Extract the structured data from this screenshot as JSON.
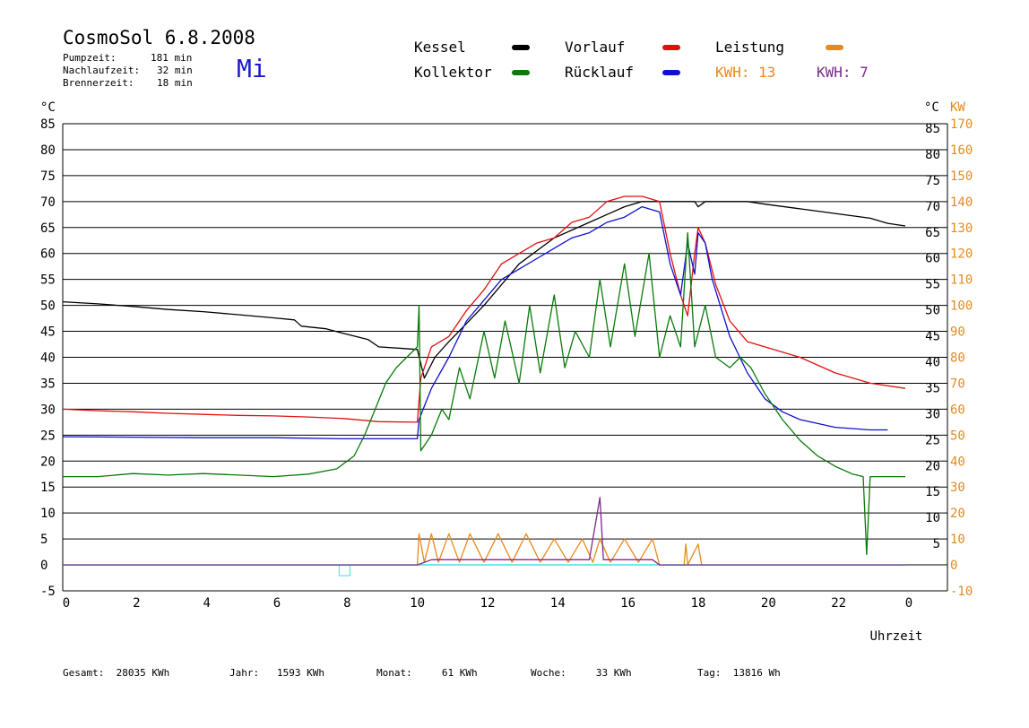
{
  "header": {
    "title": "CosmoSol 6.8.2008",
    "day": "Mi",
    "stats": [
      {
        "label": "Pumpzeit:",
        "value": "181 min"
      },
      {
        "label": "Nachlaufzeit:",
        "value": "32 min"
      },
      {
        "label": "Brennerzeit:",
        "value": "18 min"
      }
    ]
  },
  "legend": {
    "kessel": "Kessel",
    "kollektor": "Kollektor",
    "vorlauf": "Vorlauf",
    "ruecklauf": "Rücklauf",
    "leistung": "Leistung",
    "kwh1": "KWH: 13",
    "kwh2": "KWH: 7"
  },
  "colors": {
    "kessel": "#000000",
    "kollektor": "#0a7a0a",
    "vorlauf": "#e01010",
    "ruecklauf": "#1010d0",
    "leistung": "#e8891c",
    "kwh2": "#7b2a8c",
    "zero_line": "#40e0e0"
  },
  "footer": {
    "gesamt": "Gesamt:  28035 KWh",
    "jahr": "Jahr:   1593 KWh",
    "monat": "Monat:     61 KWh",
    "woche": "Woche:     33 KWh",
    "tag": "Tag:  13816 Wh"
  },
  "chart_data": {
    "type": "line",
    "left_unit": "°C",
    "right_unit_c": "°C",
    "right_unit_kw": "KW",
    "xlabel": "Uhrzeit",
    "x_ticks": [
      "0",
      "2",
      "4",
      "6",
      "8",
      "10",
      "12",
      "14",
      "16",
      "18",
      "20",
      "22",
      "0"
    ],
    "y_left_ticks": [
      85,
      80,
      75,
      70,
      65,
      60,
      55,
      50,
      45,
      40,
      35,
      30,
      25,
      20,
      15,
      10,
      5,
      0,
      -5
    ],
    "y_right_c_ticks": [
      85,
      80,
      75,
      70,
      65,
      60,
      55,
      50,
      45,
      40,
      35,
      30,
      25,
      20,
      15,
      10,
      5
    ],
    "y_right_kw_ticks": [
      170,
      160,
      150,
      140,
      130,
      120,
      110,
      100,
      90,
      80,
      70,
      60,
      50,
      40,
      30,
      20,
      10,
      0,
      -10
    ],
    "xlim": [
      0,
      24
    ],
    "ylim": [
      -5,
      85
    ],
    "grid": true,
    "series": [
      {
        "name": "Kessel",
        "key": "kessel",
        "points": [
          [
            0,
            50.7
          ],
          [
            1,
            50.3
          ],
          [
            2,
            49.8
          ],
          [
            3,
            49.2
          ],
          [
            4,
            48.8
          ],
          [
            5,
            48.2
          ],
          [
            6,
            47.6
          ],
          [
            6.6,
            47.2
          ],
          [
            6.8,
            46
          ],
          [
            7.5,
            45.5
          ],
          [
            8,
            44.6
          ],
          [
            8.7,
            43.4
          ],
          [
            9,
            42
          ],
          [
            9.7,
            41.7
          ],
          [
            10.1,
            41.5
          ],
          [
            10.3,
            36
          ],
          [
            10.6,
            40
          ],
          [
            11,
            43
          ],
          [
            12,
            50
          ],
          [
            13,
            58
          ],
          [
            14,
            63
          ],
          [
            15,
            66
          ],
          [
            15.5,
            67.5
          ],
          [
            16,
            69
          ],
          [
            16.5,
            70
          ],
          [
            17,
            70
          ],
          [
            17.5,
            70
          ],
          [
            18,
            70
          ],
          [
            18.1,
            69
          ],
          [
            18.3,
            70
          ],
          [
            19,
            70
          ],
          [
            19.5,
            70
          ],
          [
            20,
            69.5
          ],
          [
            21,
            68.6
          ],
          [
            22,
            67.7
          ],
          [
            23,
            66.8
          ],
          [
            23.5,
            65.8
          ],
          [
            24,
            65.3
          ]
        ]
      },
      {
        "name": "Vorlauf",
        "key": "vorlauf",
        "points": [
          [
            0,
            30
          ],
          [
            1,
            29.7
          ],
          [
            2,
            29.5
          ],
          [
            3,
            29.2
          ],
          [
            4,
            29
          ],
          [
            5,
            28.8
          ],
          [
            6,
            28.7
          ],
          [
            7,
            28.5
          ],
          [
            8,
            28.2
          ],
          [
            9,
            27.6
          ],
          [
            10.1,
            27.5
          ],
          [
            10.2,
            36
          ],
          [
            10.5,
            42
          ],
          [
            11,
            44
          ],
          [
            11.5,
            49
          ],
          [
            12,
            53
          ],
          [
            12.5,
            58
          ],
          [
            13,
            60
          ],
          [
            13.5,
            62
          ],
          [
            14,
            63
          ],
          [
            14.5,
            66
          ],
          [
            15,
            67
          ],
          [
            15.5,
            70
          ],
          [
            16,
            71
          ],
          [
            16.5,
            71
          ],
          [
            17,
            70
          ],
          [
            17.3,
            60
          ],
          [
            17.6,
            52
          ],
          [
            17.8,
            48
          ],
          [
            18,
            60
          ],
          [
            18.1,
            65
          ],
          [
            18.3,
            62
          ],
          [
            18.6,
            54
          ],
          [
            19,
            47
          ],
          [
            19.5,
            43
          ],
          [
            20,
            42
          ],
          [
            21,
            40
          ],
          [
            22,
            37
          ],
          [
            23,
            35
          ],
          [
            24,
            34
          ]
        ]
      },
      {
        "name": "Rücklauf",
        "key": "ruecklauf",
        "points": [
          [
            0,
            24.7
          ],
          [
            2,
            24.6
          ],
          [
            4,
            24.5
          ],
          [
            6,
            24.5
          ],
          [
            8,
            24.3
          ],
          [
            10.1,
            24.3
          ],
          [
            10.15,
            28
          ],
          [
            10.5,
            34
          ],
          [
            11,
            40
          ],
          [
            11.5,
            47
          ],
          [
            12,
            51
          ],
          [
            12.5,
            55
          ],
          [
            13,
            57
          ],
          [
            13.5,
            59
          ],
          [
            14,
            61
          ],
          [
            14.5,
            63
          ],
          [
            15,
            64
          ],
          [
            15.5,
            66
          ],
          [
            16,
            67
          ],
          [
            16.5,
            69
          ],
          [
            17,
            68
          ],
          [
            17.3,
            58
          ],
          [
            17.6,
            52
          ],
          [
            17.8,
            62
          ],
          [
            18,
            56
          ],
          [
            18.1,
            64
          ],
          [
            18.3,
            62
          ],
          [
            18.5,
            55
          ],
          [
            19,
            44
          ],
          [
            19.5,
            37
          ],
          [
            20,
            32
          ],
          [
            20.5,
            29.5
          ],
          [
            21,
            28
          ],
          [
            22,
            26.5
          ],
          [
            23,
            26
          ],
          [
            23.5,
            26
          ]
        ]
      },
      {
        "name": "Kollektor",
        "key": "kollektor",
        "points": [
          [
            0,
            17
          ],
          [
            1,
            17
          ],
          [
            2,
            17.6
          ],
          [
            3,
            17.3
          ],
          [
            4,
            17.6
          ],
          [
            5,
            17.3
          ],
          [
            6,
            17
          ],
          [
            7,
            17.5
          ],
          [
            7.8,
            18.5
          ],
          [
            8.3,
            21
          ],
          [
            8.6,
            25
          ],
          [
            8.9,
            30
          ],
          [
            9.2,
            35
          ],
          [
            9.5,
            38
          ],
          [
            9.8,
            40
          ],
          [
            10.1,
            42
          ],
          [
            10.15,
            50
          ],
          [
            10.2,
            22
          ],
          [
            10.5,
            25
          ],
          [
            10.8,
            30
          ],
          [
            11,
            28
          ],
          [
            11.3,
            38
          ],
          [
            11.6,
            32
          ],
          [
            12,
            45
          ],
          [
            12.3,
            36
          ],
          [
            12.6,
            47
          ],
          [
            13,
            35
          ],
          [
            13.3,
            50
          ],
          [
            13.6,
            37
          ],
          [
            14,
            52
          ],
          [
            14.3,
            38
          ],
          [
            14.6,
            45
          ],
          [
            15,
            40
          ],
          [
            15.3,
            55
          ],
          [
            15.6,
            42
          ],
          [
            16,
            58
          ],
          [
            16.3,
            44
          ],
          [
            16.7,
            60
          ],
          [
            17,
            40
          ],
          [
            17.3,
            48
          ],
          [
            17.6,
            42
          ],
          [
            17.8,
            64
          ],
          [
            18,
            42
          ],
          [
            18.3,
            50
          ],
          [
            18.6,
            40
          ],
          [
            19,
            38
          ],
          [
            19.3,
            40
          ],
          [
            19.6,
            38
          ],
          [
            20,
            33
          ],
          [
            20.5,
            28
          ],
          [
            21,
            24
          ],
          [
            21.5,
            21
          ],
          [
            22,
            19
          ],
          [
            22.5,
            17.5
          ],
          [
            22.8,
            17
          ],
          [
            22.9,
            2
          ],
          [
            23,
            17
          ],
          [
            23.5,
            17
          ],
          [
            24,
            17
          ]
        ]
      },
      {
        "name": "Leistung",
        "key": "leistung",
        "points": [
          [
            0,
            0
          ],
          [
            10.1,
            0
          ],
          [
            10.15,
            6
          ],
          [
            10.3,
            0.5
          ],
          [
            10.5,
            6
          ],
          [
            10.7,
            0.5
          ],
          [
            11,
            6
          ],
          [
            11.3,
            0.5
          ],
          [
            11.6,
            6
          ],
          [
            12,
            0.5
          ],
          [
            12.4,
            6
          ],
          [
            12.8,
            0.5
          ],
          [
            13.2,
            6
          ],
          [
            13.6,
            0.5
          ],
          [
            14,
            5
          ],
          [
            14.4,
            0.5
          ],
          [
            14.8,
            5
          ],
          [
            15.1,
            0.5
          ],
          [
            15.3,
            5
          ],
          [
            15.6,
            0.5
          ],
          [
            16,
            5
          ],
          [
            16.4,
            0.5
          ],
          [
            16.8,
            5
          ],
          [
            17,
            0
          ],
          [
            17.7,
            0
          ],
          [
            17.75,
            4
          ],
          [
            17.8,
            0
          ],
          [
            18.1,
            4
          ],
          [
            18.2,
            0
          ],
          [
            24,
            0
          ]
        ]
      },
      {
        "name": "KWH2",
        "key": "kwh2",
        "points": [
          [
            0,
            0
          ],
          [
            10.1,
            0
          ],
          [
            10.5,
            1
          ],
          [
            11,
            1
          ],
          [
            12,
            1
          ],
          [
            13,
            1
          ],
          [
            14,
            1
          ],
          [
            15,
            1
          ],
          [
            15.3,
            13
          ],
          [
            15.4,
            1
          ],
          [
            16,
            1
          ],
          [
            16.8,
            1
          ],
          [
            17,
            0
          ],
          [
            24,
            0
          ]
        ]
      }
    ]
  }
}
